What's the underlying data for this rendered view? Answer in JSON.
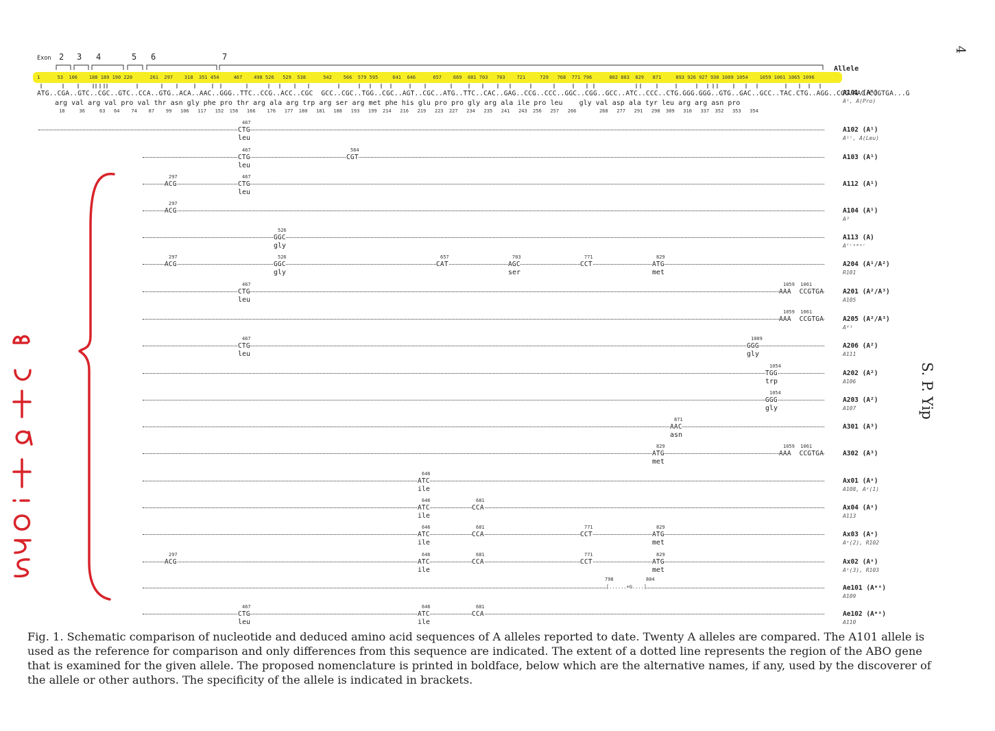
{
  "page_number": "4",
  "running_head": "S. P. Yip",
  "handwritten_note": "mutations",
  "exon_label": "Exon",
  "exon_numbers": [
    "2",
    "3",
    "4",
    "5",
    "6",
    "7"
  ],
  "allele_column_header": "Allele",
  "positions_row": "1      53  106    188 189 190 220      261  297    318  351 454     467    498 526   529  538      542    566  579 595     641  646      657    669  681 703   703    721     729   768  771 796      802 803  829   871     893 926 927 930 1009 1054    1059 1061 1065 1096",
  "reference_sequence": "ATG..CGA..GTC..CGC..GTC..CCA..GTG..ACA..AAC..GGG..TTC..CCG..ACC..CGC  GCC..CGC..TGG..CGC..AGT..CGC..ATG..TTC..CAC..GAG..CCG..CCC..GGC..CGG..GCC..ATC..CCC..CTG.GGG.GGG..GTG..GAC..GCC..TAC.CTG..AGG..CGG.AAC.CCGTGA...G",
  "reference_amino_acids": "arg val arg val pro val thr asn gly phe pro thr arg ala arg trp arg ser arg met phe his glu pro pro gly arg ala ile pro leu    gly val asp ala tyr leu arg arg asn pro",
  "codon_numbers": "18     36     63   64    74    87    99   106   117   152  156   166    176   177  180   181   188   193   199  214   216   219   223  227   234   235   241   243  256   257   266        268   277   291   298  309   310   337  352   353   354",
  "alleles": [
    {
      "name": "A101",
      "spec": "(A¹)",
      "alt": "A¹, A(Pro)"
    },
    {
      "name": "A102",
      "spec": "(A¹)",
      "alt": "A¹ˡ, A(Leu)"
    },
    {
      "name": "A103",
      "spec": "(A¹)",
      "alt": ""
    },
    {
      "name": "A112",
      "spec": "(A¹)",
      "alt": ""
    },
    {
      "name": "A104",
      "spec": "(A¹)",
      "alt": "A³"
    },
    {
      "name": "A113",
      "spec": "(A)",
      "alt": "Aᶠʳᵒᵐᵉʳ"
    },
    {
      "name": "A204",
      "spec": "(A¹/A²)",
      "alt": "R101"
    },
    {
      "name": "A201",
      "spec": "(A²/A³)",
      "alt": "A105"
    },
    {
      "name": "A205",
      "spec": "(A²/A³)",
      "alt": "Aᵈ¹"
    },
    {
      "name": "A206",
      "spec": "(A²)",
      "alt": "A111"
    },
    {
      "name": "A202",
      "spec": "(A²)",
      "alt": "A106"
    },
    {
      "name": "A203",
      "spec": "(A²)",
      "alt": "A107"
    },
    {
      "name": "A301",
      "spec": "(A³)",
      "alt": ""
    },
    {
      "name": "A302",
      "spec": "(A³)",
      "alt": ""
    },
    {
      "name": "Ax01",
      "spec": "(Aˣ)",
      "alt": "A108, Aˣ(1)"
    },
    {
      "name": "Ax04",
      "spec": "(Aˣ)",
      "alt": "A113"
    },
    {
      "name": "Ax03",
      "spec": "(Aˣ)",
      "alt": "Aˣ(2), R102"
    },
    {
      "name": "Ax02",
      "spec": "(Aˣ)",
      "alt": "Aˣ(3), R103"
    },
    {
      "name": "Ae101",
      "spec": "(Aᵉˣ)",
      "alt": "A109"
    },
    {
      "name": "Ae102",
      "spec": "(Aᵉˣ)",
      "alt": "A110"
    }
  ],
  "mutation_labels": {
    "m467": "467",
    "ctg": "CTG",
    "leu": "leu",
    "m564": "564",
    "cgt": "CGT",
    "m297": "297",
    "acg": "ACG",
    "m526": "526",
    "ggc": "GGC",
    "gly": "gly",
    "m657": "657",
    "cat": "CAT",
    "m703": "703",
    "agc": "AGC",
    "ser": "ser",
    "m771": "771",
    "cct": "CCT",
    "m829": "829",
    "atg": "ATG",
    "met": "met",
    "m1059": "1059  1061",
    "aaaccgtga": "AAA  CCGTGA",
    "m1009": "1009",
    "ggg": "GGG",
    "m1054": "1054",
    "tgg": "TGG",
    "trp": "trp",
    "m871": "871",
    "aac": "AAC",
    "asn": "asn",
    "m646": "646",
    "atc": "ATC",
    "ile": "ile",
    "m681": "681",
    "cca": "CCA",
    "m798": "798",
    "m804": "804",
    "ins": "[......+G....]"
  },
  "caption": "Fig. 1. Schematic comparison of nucleotide and deduced amino acid sequences of A alleles reported to date. Twenty A alleles are compared. The A101 allele is used as the reference for comparison and only differences from this sequence are indicated. The extent of a dotted line represents the region of the ABO gene that is examined for the given allele. The proposed nomenclature is printed in boldface, below which are the alternative names, if any, used by the discoverer of the allele or other authors. The specificity of the allele is indicated in brackets."
}
